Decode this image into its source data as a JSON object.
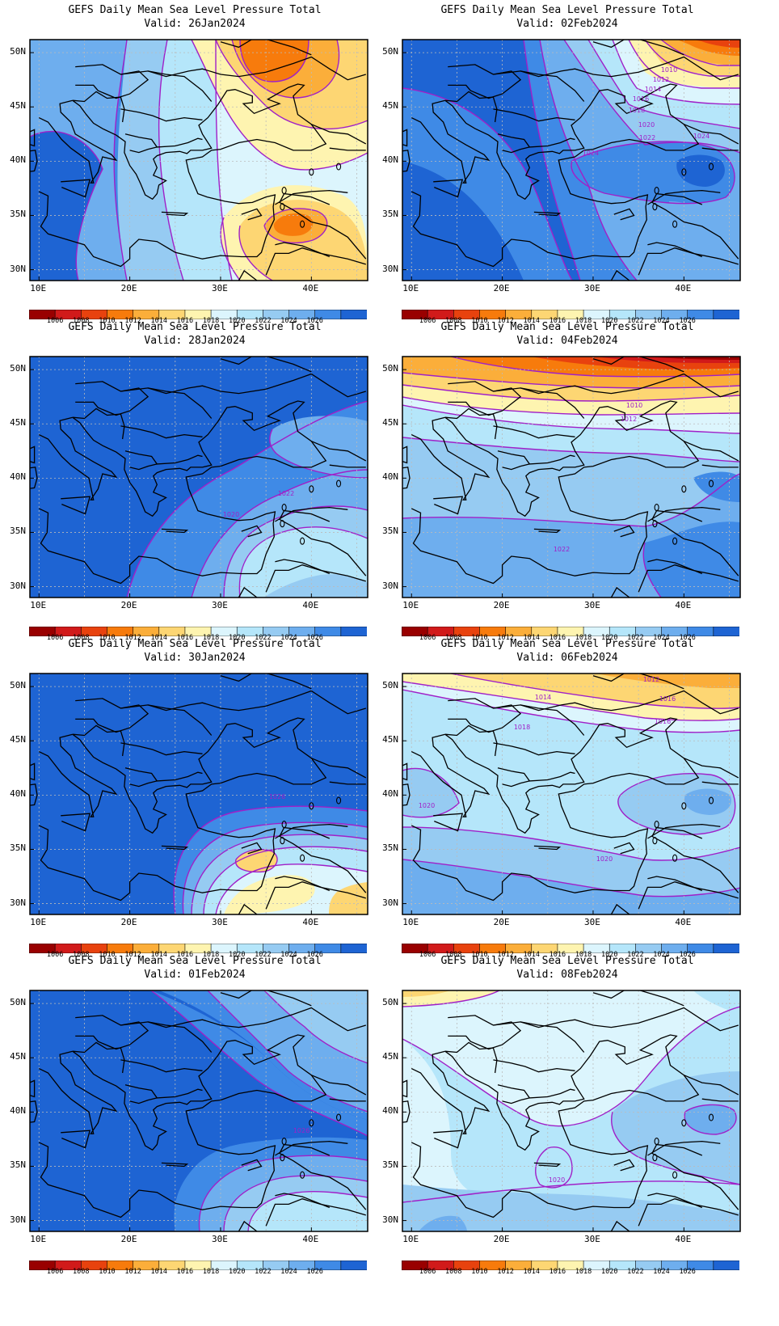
{
  "product_title": "GEFS Daily Mean Sea Level Pressure Total",
  "valid_prefix": "Valid:",
  "lat_labels": [
    "50N",
    "45N",
    "40N",
    "35N",
    "30N"
  ],
  "lon_labels": [
    "10E",
    "20E",
    "30E",
    "40E"
  ],
  "colorbar": {
    "levels": [
      "1006",
      "1008",
      "1010",
      "1012",
      "1014",
      "1016",
      "1018",
      "1020",
      "1022",
      "1024",
      "1026"
    ],
    "colors": [
      "#990000",
      "#d11a1a",
      "#e8420e",
      "#f77b0c",
      "#fbae3a",
      "#fdd673",
      "#fef4b0",
      "#dcf5fd",
      "#b5e6fa",
      "#96cbf2",
      "#6eaeee",
      "#3f8ae6",
      "#1e64d3"
    ]
  },
  "maps": [
    {
      "valid": "26Jan2024",
      "contour_labels": []
    },
    {
      "valid": "02Feb2024",
      "contour_labels": [
        "1010",
        "1012",
        "1014",
        "1016",
        "1018",
        "1020",
        "1022",
        "1024",
        "1024"
      ]
    },
    {
      "valid": "28Jan2024",
      "contour_labels": [
        "1022",
        "1020"
      ]
    },
    {
      "valid": "04Feb2024",
      "contour_labels": [
        "1010",
        "1012",
        "1022"
      ]
    },
    {
      "valid": "30Jan2024",
      "contour_labels": [
        "1026"
      ]
    },
    {
      "valid": "06Feb2024",
      "contour_labels": [
        "1012",
        "1014",
        "1016",
        "1016",
        "1018",
        "1020",
        "1020"
      ]
    },
    {
      "valid": "01Feb2024",
      "contour_labels": [
        "1026"
      ]
    },
    {
      "valid": "08Feb2024",
      "contour_labels": [
        "1020"
      ]
    }
  ]
}
